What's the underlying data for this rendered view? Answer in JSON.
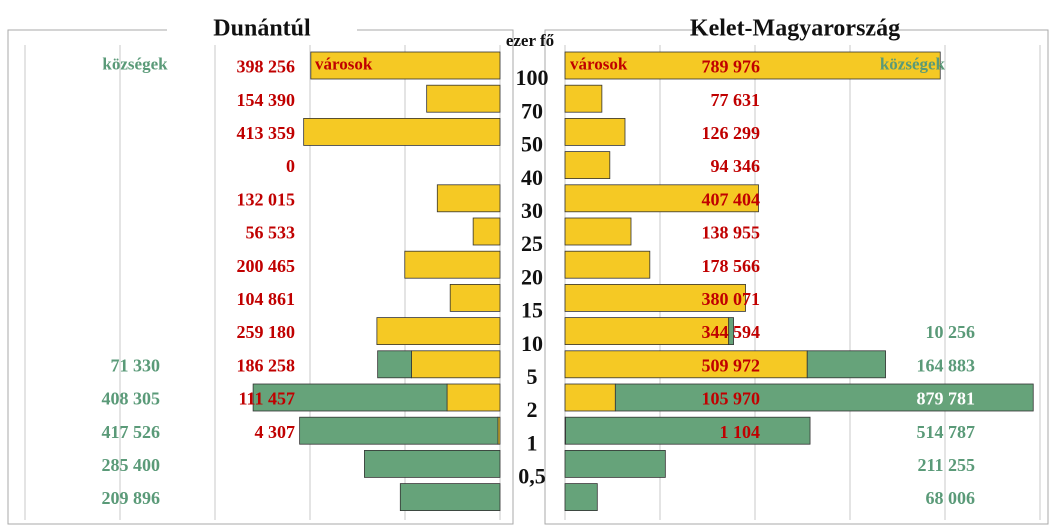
{
  "chart_data": {
    "type": "pyramid",
    "unit_label": "ezer fő",
    "size_bounds": [
      "100",
      "70",
      "50",
      "40",
      "30",
      "25",
      "20",
      "15",
      "10",
      "5",
      "2",
      "1",
      "0,5"
    ],
    "xlim": [
      0,
      1000000
    ],
    "xticks": [
      0,
      200000,
      400000,
      600000,
      800000,
      1000000
    ],
    "grid": true,
    "panels": [
      {
        "title": "Dunántúl",
        "side": "left",
        "series": [
          {
            "name": "városok",
            "color": "#f5c924",
            "label_color": "#c00000",
            "values": [
              398256,
              154390,
              413359,
              0,
              132015,
              56533,
              200465,
              104861,
              259180,
              186258,
              111457,
              4307,
              null,
              null
            ],
            "value_labels": [
              "398 256",
              "154 390",
              "413 359",
              "0",
              "132 015",
              "56 533",
              "200 465",
              "104 861",
              "259 180",
              "186 258",
              "111 457",
              "4 307",
              null,
              null
            ]
          },
          {
            "name": "községek",
            "color": "#66a37a",
            "label_color": "#5a9a78",
            "values": [
              null,
              null,
              null,
              null,
              null,
              null,
              null,
              null,
              null,
              71330,
              408305,
              417526,
              285400,
              209896
            ],
            "value_labels": [
              null,
              null,
              null,
              null,
              null,
              null,
              null,
              null,
              null,
              "71 330",
              "408 305",
              "417 526",
              "285 400",
              "209 896"
            ]
          }
        ]
      },
      {
        "title": "Kelet-Magyarország",
        "side": "right",
        "series": [
          {
            "name": "városok",
            "color": "#f5c924",
            "label_color": "#c00000",
            "values": [
              789976,
              77631,
              126299,
              94346,
              407404,
              138955,
              178566,
              380071,
              344594,
              509972,
              105970,
              1104,
              null,
              null
            ],
            "value_labels": [
              "789 976",
              "77 631",
              "126 299",
              "94 346",
              "407 404",
              "138 955",
              "178 566",
              "380 071",
              "344 594",
              "509 972",
              "105 970",
              "1 104",
              null,
              null
            ]
          },
          {
            "name": "községek",
            "color": "#66a37a",
            "label_color": "#5a9a78",
            "values": [
              null,
              null,
              null,
              null,
              null,
              null,
              null,
              null,
              10256,
              164883,
              879781,
              514787,
              211255,
              68006
            ],
            "value_labels": [
              null,
              null,
              null,
              null,
              null,
              null,
              null,
              null,
              "10 256",
              "164 883",
              "879 781",
              "514 787",
              "211 255",
              "68 006"
            ]
          }
        ]
      }
    ]
  }
}
